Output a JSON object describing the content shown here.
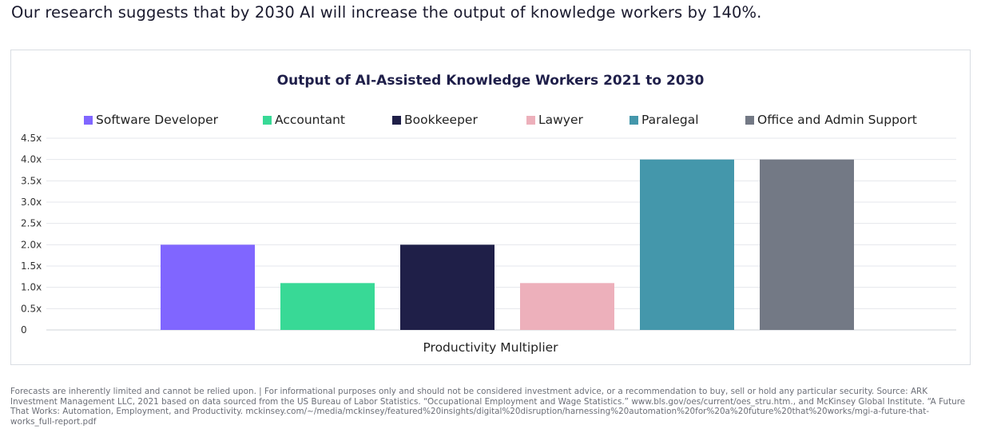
{
  "headline": "Our research suggests that by 2030 AI will increase the output of knowledge workers by 140%.",
  "chart_data": {
    "type": "bar",
    "title": "Output of AI-Assisted Knowledge Workers 2021 to 2030",
    "xlabel": "Productivity Multiplier",
    "ylabel": "",
    "ylim": [
      0,
      4.5
    ],
    "yticks": [
      "0",
      "0.5x",
      "1.0x",
      "1.5x",
      "2.0x",
      "2.5x",
      "3.0x",
      "3.5x",
      "4.0x",
      "4.5x"
    ],
    "grid": true,
    "legend_position": "top",
    "series": [
      {
        "name": "Software Developer",
        "value": 2.0,
        "color": "#8066ff"
      },
      {
        "name": "Accountant",
        "value": 1.1,
        "color": "#38d996"
      },
      {
        "name": "Bookkeeper",
        "value": 2.0,
        "color": "#1f1f48"
      },
      {
        "name": "Lawyer",
        "value": 1.1,
        "color": "#edb0bb"
      },
      {
        "name": "Paralegal",
        "value": 4.0,
        "color": "#4497ab"
      },
      {
        "name": "Office and Admin Support",
        "value": 4.0,
        "color": "#737985"
      }
    ]
  },
  "footnote": "Forecasts are inherently limited and cannot be relied upon. | For informational purposes only and should not be considered investment advice, or a recommendation to buy, sell or hold any particular security. Source: ARK Investment Management LLC, 2021 based on data sourced from the US Bureau of Labor Statistics. “Occupational Employment and Wage Statistics.” www.bls.gov/oes/current/oes_stru.htm., and McKinsey Global Institute. “A Future That Works: Automation, Employment, and Productivity. mckinsey.com/~/media/mckinsey/featured%20insights/digital%20disruption/harnessing%20automation%20for%20a%20future%20that%20works/mgi-a-future-that-works_full-report.pdf"
}
